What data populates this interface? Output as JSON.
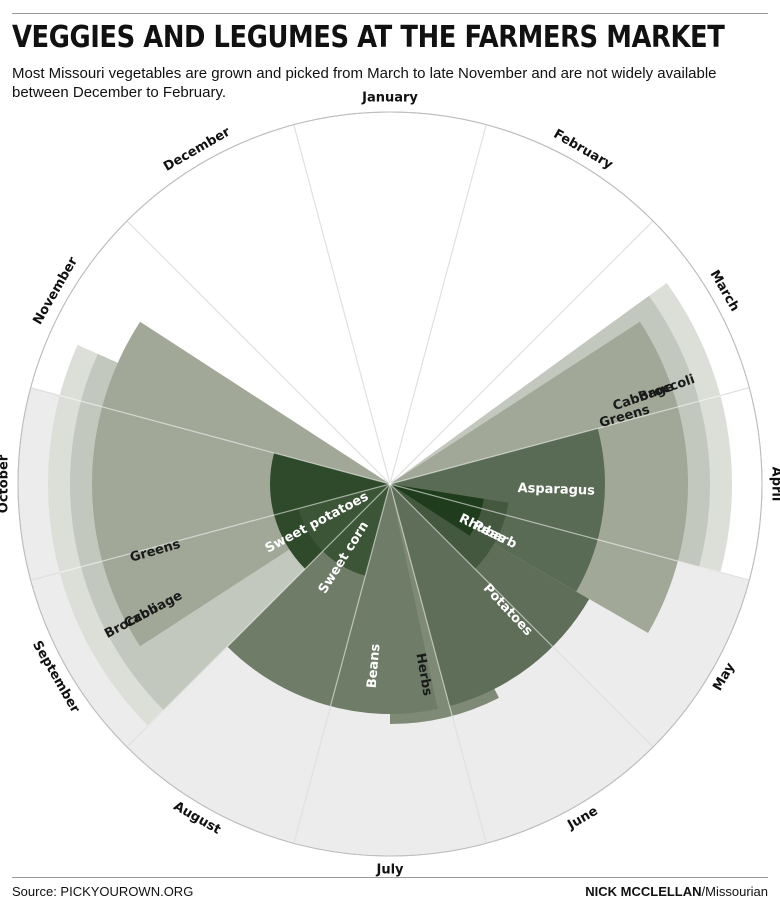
{
  "header": {
    "title": "VEGGIES AND LEGUMES AT THE FARMERS MARKET",
    "subtitle": "Most Missouri vegetables are grown and picked from March to late November and are not widely available between December to February."
  },
  "footer": {
    "source": "Source: PICKYOUROWN.ORG",
    "author": "NICK MCCLELLAN",
    "outlet": "/Missourian"
  },
  "chart_data": {
    "type": "radial-calendar",
    "months": [
      "January",
      "February",
      "March",
      "April",
      "May",
      "June",
      "July",
      "August",
      "September",
      "October",
      "November",
      "December"
    ],
    "rings": [
      {
        "label": "Broccoli",
        "start": 2.3,
        "end": 4.0,
        "ring": 8,
        "color": "#dcdfd8"
      },
      {
        "label": "Broccoli",
        "start": 8.0,
        "end": 10.3,
        "ring": 8,
        "color": "#dcdfd8"
      },
      {
        "label": "Cabbage",
        "start": 2.3,
        "end": 4.0,
        "ring": 7,
        "color": "#c3c8be"
      },
      {
        "label": "Cabbage",
        "start": 8.0,
        "end": 10.3,
        "ring": 7,
        "color": "#c3c8be"
      },
      {
        "label": "Greens",
        "start": 2.4,
        "end": 4.5,
        "ring": 6,
        "color": "#a1a898"
      },
      {
        "label": "Greens",
        "start": 8.4,
        "end": 10.6,
        "ring": 6,
        "color": "#a1a898"
      },
      {
        "label": "Herbs",
        "start": 5.6,
        "end": 6.5,
        "ring": 5,
        "color": "#7f8a76"
      },
      {
        "label": "Beans",
        "start": 6.1,
        "end": 8.0,
        "ring": 4,
        "color": "#6f7d68"
      },
      {
        "label": "Potatoes",
        "start": 4.5,
        "end": 6.0,
        "ring": 4,
        "color": "#5f6e58"
      },
      {
        "label": "Asparagus",
        "start": 3.0,
        "end": 4.5,
        "ring": 3,
        "color": "#5a6b55"
      },
      {
        "label": "Rhubarb",
        "start": 3.8,
        "end": 5.0,
        "ring": 2,
        "color": "#44573f"
      },
      {
        "label": "Sweet potatoes",
        "start": 8.0,
        "end": 10.0,
        "ring": 2,
        "color": "#2f4a2b"
      },
      {
        "label": "Sweet corn",
        "start": 7.0,
        "end": 9.0,
        "ring": 1,
        "color": "#3c5536"
      },
      {
        "label": "Peas",
        "start": 3.8,
        "end": 4.6,
        "ring": 1,
        "color": "#1f3d1c"
      }
    ]
  }
}
